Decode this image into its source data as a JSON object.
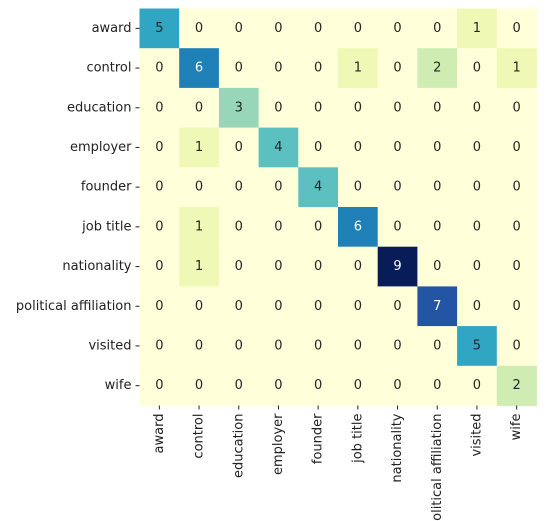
{
  "chart_data": {
    "type": "heatmap",
    "row_labels": [
      "award",
      "control",
      "education",
      "employer",
      "founder",
      "job title",
      "nationality",
      "political affiliation",
      "visited",
      "wife"
    ],
    "col_labels": [
      "award",
      "control",
      "education",
      "employer",
      "founder",
      "job title",
      "nationality",
      "political affiliation",
      "visited",
      "wife"
    ],
    "values": [
      [
        5,
        0,
        0,
        0,
        0,
        0,
        0,
        0,
        1,
        0
      ],
      [
        0,
        6,
        0,
        0,
        0,
        1,
        0,
        2,
        0,
        1
      ],
      [
        0,
        0,
        3,
        0,
        0,
        0,
        0,
        0,
        0,
        0
      ],
      [
        0,
        1,
        0,
        4,
        0,
        0,
        0,
        0,
        0,
        0
      ],
      [
        0,
        0,
        0,
        0,
        4,
        0,
        0,
        0,
        0,
        0
      ],
      [
        0,
        1,
        0,
        0,
        0,
        6,
        0,
        0,
        0,
        0
      ],
      [
        0,
        1,
        0,
        0,
        0,
        0,
        9,
        0,
        0,
        0
      ],
      [
        0,
        0,
        0,
        0,
        0,
        0,
        0,
        7,
        0,
        0
      ],
      [
        0,
        0,
        0,
        0,
        0,
        0,
        0,
        0,
        5,
        0
      ],
      [
        0,
        0,
        0,
        0,
        0,
        0,
        0,
        0,
        0,
        2
      ]
    ],
    "value_range": [
      0,
      9
    ],
    "colormap": "YlGnBu",
    "annotated": true,
    "colorbar": false,
    "title": "",
    "xlabel": "",
    "ylabel": ""
  }
}
